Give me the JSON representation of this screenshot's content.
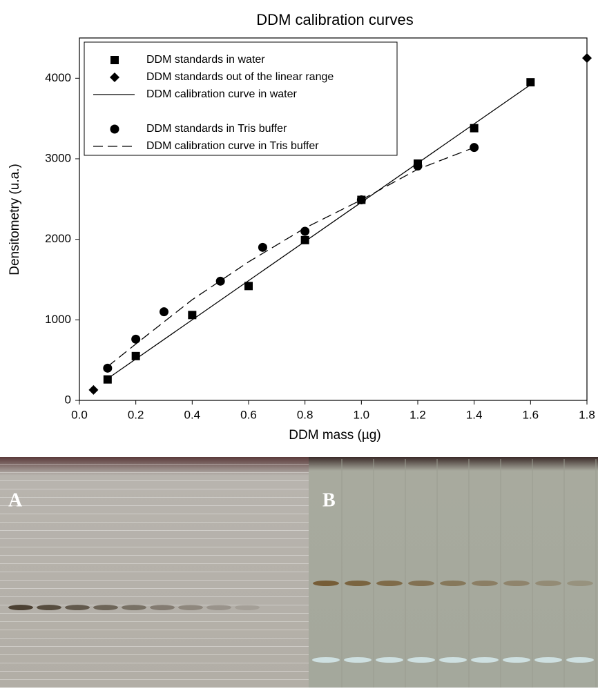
{
  "chart_data": {
    "type": "scatter",
    "title": "DDM calibration curves",
    "x_label": "DDM mass (µg)",
    "y_label": "Densitometry (u.a.)",
    "xlim": [
      0,
      1.8
    ],
    "ylim": [
      0,
      4500
    ],
    "xticks": [
      {
        "value": 0,
        "label": "0.0"
      },
      0.2,
      0.4,
      0.6,
      0.8,
      {
        "value": 1,
        "label": "1.0"
      },
      1.2,
      1.4,
      1.6,
      1.8
    ],
    "yticks": [
      0,
      1000,
      2000,
      3000,
      4000
    ],
    "grid": false,
    "legend": "upper left",
    "series": [
      {
        "name": "DDM standards in water",
        "kind": "marker",
        "marker": "square",
        "color": "#000000",
        "x": [
          0.1,
          0.2,
          0.4,
          0.6,
          0.8,
          1.0,
          1.2,
          1.4,
          1.6
        ],
        "values": [
          260,
          550,
          1060,
          1420,
          1990,
          2490,
          2940,
          3380,
          3950
        ]
      },
      {
        "name": "DDM standards out of the linear range",
        "kind": "marker",
        "marker": "diamond",
        "color": "#000000",
        "x": [
          0.05,
          1.8
        ],
        "values": [
          130,
          4250
        ]
      },
      {
        "name": "DDM calibration curve in water",
        "kind": "line",
        "dash": "solid",
        "color": "#000000",
        "x": [
          0.1,
          1.6
        ],
        "values": [
          270,
          3920
        ]
      },
      {
        "name": "DDM standards in Tris buffer",
        "kind": "marker",
        "marker": "circle",
        "color": "#000000",
        "x": [
          0.1,
          0.2,
          0.3,
          0.5,
          0.65,
          0.8,
          1.0,
          1.2,
          1.4
        ],
        "values": [
          400,
          760,
          1100,
          1480,
          1900,
          2100,
          2490,
          2910,
          3140
        ]
      },
      {
        "name": "DDM calibration curve in Tris buffer",
        "kind": "line",
        "dash": "dashed",
        "color": "#000000",
        "x": [
          0.1,
          0.2,
          0.4,
          0.6,
          0.8,
          1.0,
          1.2,
          1.4
        ],
        "values": [
          420,
          700,
          1250,
          1720,
          2140,
          2490,
          2870,
          3140
        ]
      }
    ]
  },
  "panels": [
    {
      "label": "A"
    },
    {
      "label": "B"
    }
  ]
}
